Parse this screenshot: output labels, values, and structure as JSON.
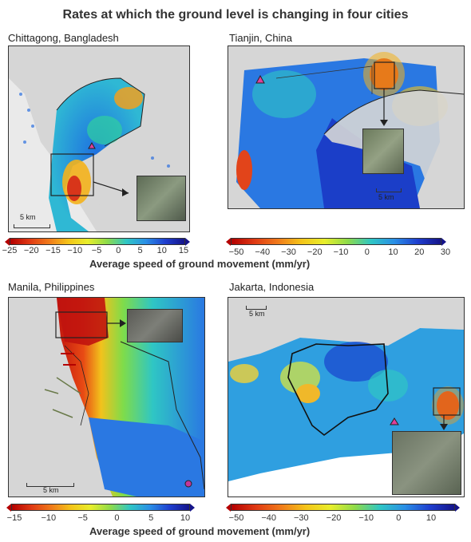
{
  "title": "Rates at which the ground level is changing in four cities",
  "panels": [
    {
      "name": "Chittagong, Bangladesh",
      "scale": "5 km",
      "colorbar_ticks": [
        "−25",
        "−20",
        "−15",
        "−10",
        "−5",
        "0",
        "5",
        "10",
        "15"
      ],
      "colorbar_label": "Average speed of ground movement (mm/yr)"
    },
    {
      "name": "Tianjin, China",
      "scale": "5 km",
      "colorbar_ticks": [
        "−50",
        "−40",
        "−30",
        "−20",
        "−10",
        "0",
        "10",
        "20",
        "30"
      ],
      "colorbar_label": "Average speed of ground movement (mm/yr)"
    },
    {
      "name": "Manila, Philippines",
      "scale": "5 km",
      "colorbar_ticks": [
        "−15",
        "−10",
        "−5",
        "0",
        "5",
        "10"
      ]
    },
    {
      "name": "Jakarta, Indonesia",
      "scale": "5 km",
      "colorbar_ticks": [
        "−50",
        "−40",
        "−30",
        "−20",
        "−10",
        "0",
        "10"
      ],
      "colorbar_label": "Average speed of ground movement (mm/yr)"
    }
  ],
  "colors": {
    "land": "#d6d6d6",
    "low": "#b30000",
    "high": "#15148a",
    "marker": "#e0409a"
  }
}
